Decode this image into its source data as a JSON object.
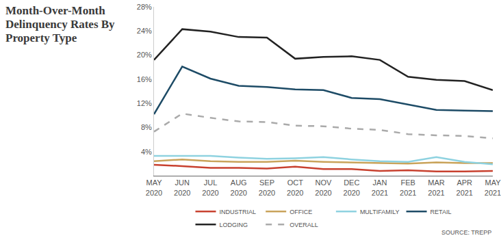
{
  "chart_data": {
    "type": "line",
    "title": "Month-Over-Month Delinquency Rates By Property Type",
    "source": "SOURCE: TREPP",
    "categories": [
      "MAY 2020",
      "JUN 2020",
      "JUL 2020",
      "AUG 2020",
      "SEP 2020",
      "OCT 2020",
      "NOV 2020",
      "DEC 2020",
      "JAN 2021",
      "FEB 2021",
      "MAR 2021",
      "APR 2021",
      "MAY 2021"
    ],
    "series": [
      {
        "name": "INDUSTRIAL",
        "color": "#c8412f",
        "line_style": "solid",
        "values": [
          1.8,
          1.6,
          1.3,
          1.3,
          1.2,
          1.5,
          1.1,
          1.1,
          0.8,
          0.9,
          0.7,
          0.7,
          0.8
        ]
      },
      {
        "name": "OFFICE",
        "color": "#c9a35a",
        "line_style": "solid",
        "values": [
          2.4,
          2.7,
          2.4,
          2.3,
          2.3,
          2.5,
          2.3,
          2.2,
          2.1,
          2.0,
          2.2,
          2.1,
          2.1
        ]
      },
      {
        "name": "MULTIFAMILY",
        "color": "#8ed2e0",
        "line_style": "solid",
        "values": [
          3.3,
          3.3,
          3.3,
          3.0,
          2.8,
          2.9,
          3.1,
          2.7,
          2.4,
          2.3,
          3.1,
          2.3,
          1.9
        ]
      },
      {
        "name": "RETAIL",
        "color": "#1d4b66",
        "line_style": "solid",
        "values": [
          10.2,
          18.1,
          16.1,
          14.9,
          14.7,
          14.3,
          14.2,
          12.9,
          12.7,
          11.8,
          10.9,
          10.8,
          10.7
        ]
      },
      {
        "name": "LODGING",
        "color": "#222222",
        "line_style": "solid",
        "values": [
          19.2,
          24.3,
          23.9,
          23.0,
          22.9,
          19.4,
          19.7,
          19.8,
          19.2,
          16.4,
          15.9,
          15.7,
          14.2
        ]
      },
      {
        "name": "OVERALL",
        "color": "#aaaaaa",
        "line_style": "dash",
        "values": [
          7.3,
          10.3,
          9.6,
          9.0,
          8.9,
          8.3,
          8.2,
          7.8,
          7.6,
          6.9,
          6.7,
          6.6,
          6.2
        ]
      }
    ],
    "ylim": [
      0,
      28
    ],
    "yticks": [
      {
        "value": 4,
        "label": "4%"
      },
      {
        "value": 8,
        "label": "8%"
      },
      {
        "value": 12,
        "label": "12%"
      },
      {
        "value": 16,
        "label": "16%"
      },
      {
        "value": 20,
        "label": "20%"
      },
      {
        "value": 24,
        "label": "24%"
      },
      {
        "value": 28,
        "label": "28%"
      }
    ],
    "grid": false,
    "legend": "bottom"
  }
}
